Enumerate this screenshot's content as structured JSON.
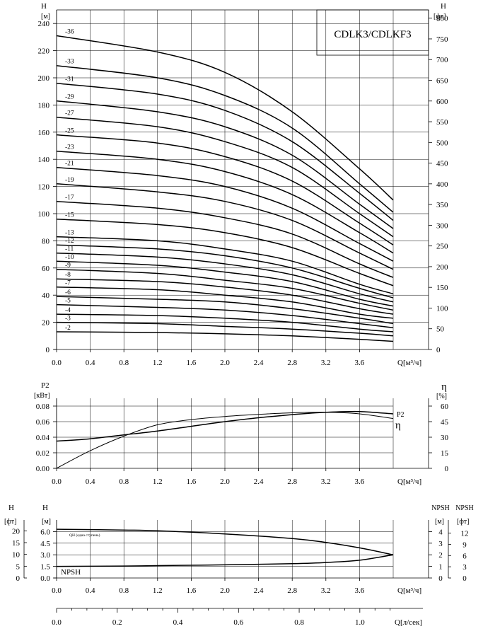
{
  "title": "CDLK3/CDLKF3",
  "chart_data": [
    {
      "type": "line",
      "name": "head-curves",
      "ylabel_left": [
        "H",
        "[м]"
      ],
      "ylabel_right": [
        "H",
        "[фт]"
      ],
      "xlabel": "Q[м³/ч]",
      "xlim": [
        0,
        4.0
      ],
      "ylim": [
        0,
        250
      ],
      "ylim_right": [
        0,
        820
      ],
      "x_ticks": [
        "0.0",
        "0.4",
        "0.8",
        "1.2",
        "1.6",
        "2.0",
        "2.4",
        "2.8",
        "3.2",
        "3.6"
      ],
      "y_ticks": [
        "0",
        "20",
        "40",
        "60",
        "80",
        "100",
        "120",
        "140",
        "160",
        "180",
        "200",
        "220",
        "240"
      ],
      "y_ticks_right": [
        "0",
        "50",
        "100",
        "150",
        "200",
        "250",
        "300",
        "350",
        "400",
        "450",
        "500",
        "550",
        "600",
        "650",
        "700",
        "750",
        "800"
      ],
      "grid": true,
      "series": [
        {
          "name": "-36",
          "x": [
            0,
            1.2,
            2.0,
            2.8,
            3.6,
            4.0
          ],
          "y": [
            231,
            219,
            204,
            175,
            133,
            110
          ]
        },
        {
          "name": "-33",
          "x": [
            0,
            1.2,
            2.0,
            2.8,
            3.6,
            4.0
          ],
          "y": [
            209,
            200,
            187,
            163,
            122,
            101
          ]
        },
        {
          "name": "-31",
          "x": [
            0,
            1.2,
            2.0,
            2.8,
            3.6,
            4.0
          ],
          "y": [
            196,
            188,
            176,
            153,
            115,
            95
          ]
        },
        {
          "name": "-29",
          "x": [
            0,
            1.2,
            2.0,
            2.8,
            3.6,
            4.0
          ],
          "y": [
            183,
            175,
            164,
            143,
            107,
            89
          ]
        },
        {
          "name": "-27",
          "x": [
            0,
            1.2,
            2.0,
            2.8,
            3.6,
            4.0
          ],
          "y": [
            171,
            164,
            153,
            134,
            100,
            83
          ]
        },
        {
          "name": "-25",
          "x": [
            0,
            1.2,
            2.0,
            2.8,
            3.6,
            4.0
          ],
          "y": [
            158,
            152,
            142,
            124,
            93,
            77
          ]
        },
        {
          "name": "-23",
          "x": [
            0,
            1.2,
            2.0,
            2.8,
            3.6,
            4.0
          ],
          "y": [
            146,
            140,
            131,
            114,
            86,
            71
          ]
        },
        {
          "name": "-21",
          "x": [
            0,
            1.2,
            2.0,
            2.8,
            3.6,
            4.0
          ],
          "y": [
            134,
            128,
            120,
            104,
            78,
            65
          ]
        },
        {
          "name": "-19",
          "x": [
            0,
            1.2,
            2.0,
            2.8,
            3.6,
            4.0
          ],
          "y": [
            122,
            116,
            109,
            95,
            71,
            59
          ]
        },
        {
          "name": "-17",
          "x": [
            0,
            1.2,
            2.0,
            2.8,
            3.6,
            4.0
          ],
          "y": [
            109,
            104,
            97,
            85,
            63,
            53
          ]
        },
        {
          "name": "-15",
          "x": [
            0,
            1.2,
            2.0,
            2.8,
            3.6,
            4.0
          ],
          "y": [
            96,
            92,
            86,
            75,
            56,
            47
          ]
        },
        {
          "name": "-13",
          "x": [
            0,
            1.2,
            2.0,
            2.8,
            3.6,
            4.0
          ],
          "y": [
            83,
            80,
            74,
            65,
            48,
            41
          ]
        },
        {
          "name": "-12",
          "x": [
            0,
            1.2,
            2.0,
            2.8,
            3.6,
            4.0
          ],
          "y": [
            77,
            74,
            69,
            60,
            45,
            38
          ]
        },
        {
          "name": "-11",
          "x": [
            0,
            1.2,
            2.0,
            2.8,
            3.6,
            4.0
          ],
          "y": [
            71,
            68,
            63,
            55,
            41,
            35
          ]
        },
        {
          "name": "-10",
          "x": [
            0,
            1.2,
            2.0,
            2.8,
            3.6,
            4.0
          ],
          "y": [
            65,
            62,
            57,
            50,
            37,
            32
          ]
        },
        {
          "name": "-9",
          "x": [
            0,
            1.2,
            2.0,
            2.8,
            3.6,
            4.0
          ],
          "y": [
            59,
            56,
            51,
            45,
            34,
            29
          ]
        },
        {
          "name": "-8",
          "x": [
            0,
            1.2,
            2.0,
            2.8,
            3.6,
            4.0
          ],
          "y": [
            52,
            50,
            46,
            40,
            30,
            26
          ]
        },
        {
          "name": "-7",
          "x": [
            0,
            1.2,
            2.0,
            2.8,
            3.6,
            4.0
          ],
          "y": [
            46,
            44,
            40,
            35,
            26,
            23
          ]
        },
        {
          "name": "-6",
          "x": [
            0,
            1.2,
            2.0,
            2.8,
            3.6,
            4.0
          ],
          "y": [
            39,
            37,
            35,
            30,
            23,
            19
          ]
        },
        {
          "name": "-5",
          "x": [
            0,
            1.2,
            2.0,
            2.8,
            3.6,
            4.0
          ],
          "y": [
            33,
            31,
            29,
            25,
            19,
            16
          ]
        },
        {
          "name": "-4",
          "x": [
            0,
            1.2,
            2.0,
            2.8,
            3.6,
            4.0
          ],
          "y": [
            26,
            25,
            23,
            20,
            15,
            13
          ]
        },
        {
          "name": "-3",
          "x": [
            0,
            1.2,
            2.0,
            2.8,
            3.6,
            4.0
          ],
          "y": [
            20,
            19,
            17,
            15,
            12,
            10
          ]
        },
        {
          "name": "-2",
          "x": [
            0,
            1.2,
            2.0,
            2.8,
            3.6,
            4.0
          ],
          "y": [
            13,
            12.5,
            11.5,
            10,
            7.5,
            6
          ]
        }
      ]
    },
    {
      "type": "line",
      "name": "power-efficiency",
      "ylabel_left": [
        "P2",
        "[кВт]"
      ],
      "ylabel_right": [
        "η",
        "[%]"
      ],
      "xlabel": "Q[м³/ч]",
      "xlim": [
        0,
        4.0
      ],
      "ylim": [
        0,
        0.09
      ],
      "ylim_right": [
        0,
        67.5
      ],
      "x_ticks": [
        "0.0",
        "0.4",
        "0.8",
        "1.2",
        "1.6",
        "2.0",
        "2.4",
        "2.8",
        "3.2",
        "3.6"
      ],
      "y_ticks": [
        "0.00",
        "0.02",
        "0.04",
        "0.06",
        "0.08"
      ],
      "y_ticks_right": [
        "0",
        "15",
        "30",
        "45",
        "60"
      ],
      "grid": true,
      "series": [
        {
          "name": "P2",
          "x": [
            0,
            0.4,
            0.8,
            1.2,
            1.6,
            2.0,
            2.4,
            2.8,
            3.2,
            3.6,
            4.0
          ],
          "y": [
            0.035,
            0.038,
            0.043,
            0.048,
            0.054,
            0.06,
            0.065,
            0.069,
            0.072,
            0.073,
            0.07
          ]
        },
        {
          "name": "η",
          "x": [
            0,
            0.4,
            0.8,
            1.2,
            1.6,
            2.0,
            2.4,
            2.8,
            3.2,
            3.6,
            4.0
          ],
          "y": [
            0,
            17,
            31,
            42,
            47,
            50,
            52,
            53.5,
            54,
            52.5,
            48
          ]
        }
      ]
    },
    {
      "type": "line",
      "name": "npsh",
      "ylabel_left": [
        "H",
        "[м]"
      ],
      "ylabel_left_outer": [
        "H",
        "[фт]"
      ],
      "ylabel_right": [
        "NPSH",
        "[м]"
      ],
      "ylabel_right_outer": [
        "NPSH",
        "[фт]"
      ],
      "xlabel": "Q[м³/ч]",
      "xlabel_secondary": "Q[л/сек]",
      "xlim": [
        0,
        4.0
      ],
      "ylim": [
        0,
        7.5
      ],
      "x_ticks": [
        "0.0",
        "0.4",
        "0.8",
        "1.2",
        "1.6",
        "2.0",
        "2.4",
        "2.8",
        "3.2",
        "3.6"
      ],
      "x_ticks_secondary": [
        "0.0",
        "0.2",
        "0.4",
        "0.6",
        "0.8",
        "1.0"
      ],
      "y_ticks": [
        "0.0",
        "1.5",
        "3.0",
        "4.5",
        "6.0"
      ],
      "y_ticks_outer": [
        "0",
        "5",
        "10",
        "15",
        "20"
      ],
      "y_ticks_right": [
        "0",
        "1",
        "2",
        "3",
        "4"
      ],
      "y_ticks_right_outer": [
        "0",
        "3",
        "6",
        "9",
        "12"
      ],
      "grid": true,
      "annotation": "QH (одна ступень)",
      "series": [
        {
          "name": "QH (одна ступень)",
          "x": [
            0,
            0.8,
            1.2,
            2.0,
            2.8,
            3.2,
            3.6,
            4.0
          ],
          "y": [
            6.3,
            6.2,
            6.1,
            5.7,
            5.1,
            4.6,
            3.9,
            3.0
          ]
        },
        {
          "name": "NPSH",
          "x": [
            0,
            0.8,
            1.2,
            2.0,
            2.8,
            3.2,
            3.6,
            4.0
          ],
          "y": [
            1.5,
            1.55,
            1.6,
            1.7,
            1.85,
            2.0,
            2.3,
            3.0
          ]
        }
      ]
    }
  ]
}
